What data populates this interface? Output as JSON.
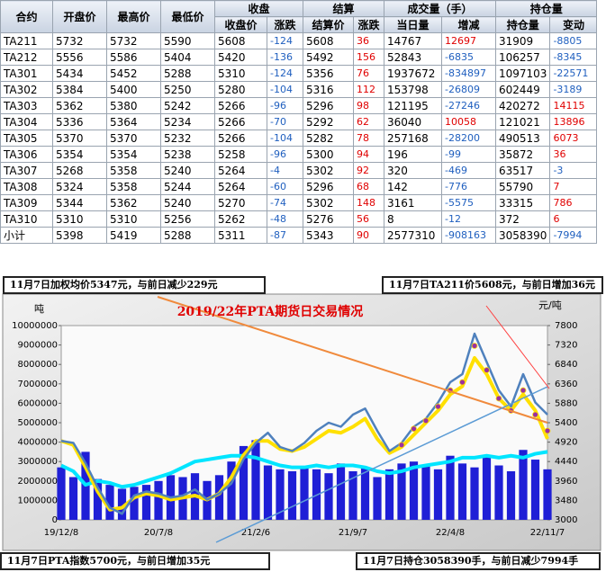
{
  "table": {
    "groups": [
      "收盘",
      "结算",
      "成交量（手）",
      "持仓量"
    ],
    "header": [
      "合约",
      "开盘价",
      "最高价",
      "最低价",
      "收盘价",
      "涨跌",
      "结算价",
      "涨跌",
      "当日量",
      "增减",
      "持仓量",
      "变动"
    ],
    "rows": [
      [
        "TA211",
        5732,
        5732,
        5590,
        5608,
        -124,
        5608,
        36,
        14767,
        12697,
        31909,
        -8805
      ],
      [
        "TA212",
        5556,
        5586,
        5404,
        5420,
        -136,
        5492,
        156,
        52843,
        -6835,
        106257,
        -8345
      ],
      [
        "TA301",
        5434,
        5452,
        5288,
        5310,
        -124,
        5356,
        76,
        1937672,
        -834897,
        1097103,
        -22571
      ],
      [
        "TA302",
        5384,
        5400,
        5250,
        5280,
        -104,
        5316,
        112,
        153798,
        -26809,
        602449,
        -3189
      ],
      [
        "TA303",
        5362,
        5380,
        5242,
        5266,
        -96,
        5296,
        98,
        121195,
        -27246,
        420272,
        14115
      ],
      [
        "TA304",
        5336,
        5364,
        5234,
        5266,
        -70,
        5292,
        62,
        36040,
        10058,
        121021,
        13896
      ],
      [
        "TA305",
        5370,
        5370,
        5232,
        5266,
        -104,
        5282,
        78,
        257168,
        -28200,
        490513,
        6073
      ],
      [
        "TA306",
        5354,
        5354,
        5238,
        5258,
        -96,
        5300,
        94,
        196,
        -99,
        35872,
        36
      ],
      [
        "TA307",
        5268,
        5358,
        5240,
        5264,
        -4,
        5302,
        92,
        320,
        -469,
        63517,
        -3
      ],
      [
        "TA308",
        5324,
        5358,
        5244,
        5264,
        -60,
        5296,
        68,
        142,
        -776,
        55790,
        7
      ],
      [
        "TA309",
        5344,
        5362,
        5240,
        5270,
        -74,
        5302,
        148,
        3161,
        -5575,
        33315,
        786
      ],
      [
        "TA310",
        5310,
        5310,
        5256,
        5262,
        -48,
        5276,
        56,
        8,
        -12,
        372,
        6
      ],
      [
        "小计",
        5398,
        5419,
        5288,
        5311,
        -87,
        5343,
        90,
        2577310,
        -908163,
        3058390,
        -7994
      ]
    ]
  },
  "notes": [
    "11月7日加权均价5347元，与前日减少229元",
    "11月7日TA211价5608元，与前日增加36元",
    "11月7日PTA指数5700元，与前日增加35元",
    "11月7日持仓3058390手，与前日减少7994手"
  ],
  "chart_data": {
    "type": "combo",
    "title": "2019/22年PTA期货日交易情况",
    "ylabel": "吨",
    "y2label": "元/吨",
    "categories": [
      "19/12/8",
      null,
      null,
      null,
      null,
      null,
      null,
      null,
      "20/7/8",
      null,
      null,
      null,
      null,
      null,
      null,
      null,
      "21/2/6",
      null,
      null,
      null,
      null,
      null,
      null,
      null,
      "21/9/7",
      null,
      null,
      null,
      null,
      null,
      null,
      null,
      "22/4/8",
      null,
      null,
      null,
      null,
      null,
      null,
      null,
      "22/11/7"
    ],
    "ylim": [
      0,
      10000000
    ],
    "yticks": [
      0,
      1000000,
      2000000,
      3000000,
      4000000,
      5000000,
      6000000,
      7000000,
      8000000,
      9000000,
      10000000
    ],
    "y2lim": [
      3000,
      7800
    ],
    "y2ticks": [
      3000,
      3480,
      3960,
      4440,
      4920,
      5400,
      5880,
      6360,
      6840,
      7320,
      7800
    ],
    "series": [
      {
        "type": "bar",
        "color": "#1f1fd6",
        "values": [
          2700000,
          2200000,
          3500000,
          2100000,
          1800000,
          1600000,
          1700000,
          1800000,
          2000000,
          2300000,
          2200000,
          2400000,
          2000000,
          2300000,
          3000000,
          3800000,
          4100000,
          2800000,
          2600000,
          2500000,
          2700000,
          2600000,
          2400000,
          2900000,
          2500000,
          2700000,
          2200000,
          2600000,
          2900000,
          3000000,
          2800000,
          2600000,
          3300000,
          2900000,
          2700000,
          3300000,
          2800000,
          2500000,
          3600000,
          3100000,
          2600000
        ]
      },
      {
        "type": "line",
        "color": "#00e5ff",
        "width": 4,
        "values": [
          2800000,
          2500000,
          1800000,
          2000000,
          1900000,
          1700000,
          1800000,
          2000000,
          2200000,
          2400000,
          2700000,
          3000000,
          3100000,
          3200000,
          3300000,
          3300000,
          3200000,
          3000000,
          2800000,
          2700000,
          2700000,
          2800000,
          2700000,
          2800000,
          2800000,
          2700000,
          2500000,
          2400000,
          2500000,
          2700000,
          2800000,
          2900000,
          3000000,
          3200000,
          3200000,
          3300000,
          3200000,
          3300000,
          3200000,
          3400000,
          3500000
        ]
      },
      {
        "type": "line",
        "axis": "y2",
        "color": "#ffe000",
        "width": 4,
        "values": [
          4950,
          4850,
          4300,
          3700,
          3250,
          3300,
          3550,
          3650,
          3600,
          3500,
          3550,
          3600,
          3500,
          3650,
          4050,
          4600,
          4950,
          4950,
          4750,
          4700,
          4800,
          5000,
          5200,
          5150,
          5300,
          5500,
          5000,
          4650,
          4800,
          5100,
          5400,
          5700,
          6100,
          6300,
          7000,
          6600,
          6000,
          5700,
          6100,
          5700,
          5000
        ]
      },
      {
        "type": "line",
        "axis": "y2",
        "color": "#4f81bd",
        "width": 2.5,
        "values": [
          4950,
          4900,
          4400,
          3800,
          3300,
          3150,
          3600,
          3700,
          3650,
          3550,
          3600,
          3750,
          3500,
          3650,
          3900,
          4500,
          4900,
          5150,
          4800,
          4700,
          4900,
          5200,
          5400,
          5300,
          5600,
          5750,
          5200,
          4700,
          4900,
          5300,
          5500,
          5900,
          6400,
          6600,
          7600,
          6900,
          6200,
          5800,
          6600,
          5900,
          5600
        ]
      },
      {
        "type": "scatter",
        "axis": "y2",
        "color": "#9b30a0",
        "values": [
          null,
          null,
          null,
          null,
          null,
          null,
          null,
          null,
          null,
          null,
          null,
          null,
          null,
          null,
          null,
          null,
          null,
          null,
          null,
          null,
          null,
          null,
          null,
          null,
          null,
          null,
          null,
          null,
          4850,
          5250,
          5450,
          5800,
          6200,
          6400,
          7300,
          6700,
          6000,
          5700,
          6200,
          5600,
          5200
        ]
      }
    ]
  }
}
